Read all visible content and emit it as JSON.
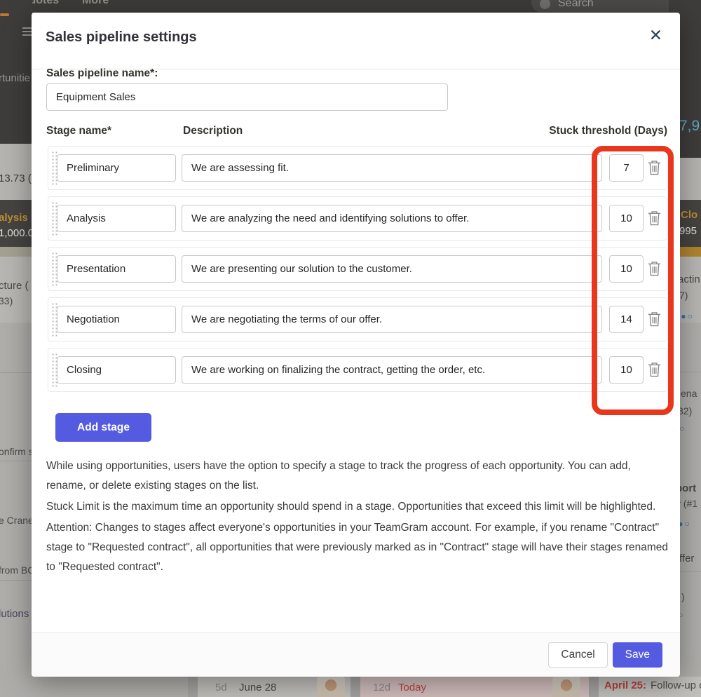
{
  "colors": {
    "accent_indigo": "#555be0",
    "annotation_red": "#e8371c",
    "header_dark": "#3d3c3a",
    "column_header_dark": "#454441",
    "orange_column_text": "#bf8f33",
    "blue_total_text": "#64a8cc",
    "pagination_dot_blue": "#3c6da5",
    "date_red": "#b5413a"
  },
  "background": {
    "nav": {
      "quotes": "Quotes",
      "more": "More",
      "search_placeholder": "Search"
    },
    "left_fragments": [
      "rtunitie",
      "13.73 (",
      "alysis",
      "1,000.0",
      "cture (",
      "33)",
      "onfirm s",
      "e Crane",
      "from BC",
      "lutions"
    ],
    "right_fragments": [
      "7,9",
      "Clo",
      "995",
      "actin",
      "7)",
      "●●○",
      "ena",
      "82)",
      "●○",
      "port",
      "y (#1",
      "●●○",
      "ffer",
      ")",
      "●○"
    ],
    "bottom_cards": {
      "card1_age": "5d",
      "card1_date": "June 28",
      "card2_age": "12d",
      "card2_date": "Today",
      "card3_date": "April 25:",
      "card3_text": " Follow-up ca"
    }
  },
  "modal": {
    "title": "Sales pipeline settings",
    "close_glyph": "✕",
    "pipeline_name": {
      "label": "Sales pipeline name*:",
      "value": "Equipment Sales"
    },
    "columns": {
      "stage": "Stage name*",
      "description": "Description",
      "threshold": "Stuck threshold (Days)"
    },
    "stages": [
      {
        "name": "Preliminary",
        "description": "We are assessing fit.",
        "threshold": "7"
      },
      {
        "name": "Analysis",
        "description": "We are analyzing the need and identifying solutions to offer.",
        "threshold": "10"
      },
      {
        "name": "Presentation",
        "description": "We are presenting our solution to the customer.",
        "threshold": "10"
      },
      {
        "name": "Negotiation",
        "description": "We are negotiating the terms of our offer.",
        "threshold": "14"
      },
      {
        "name": "Closing",
        "description": "We are working on finalizing the contract, getting the order, etc.",
        "threshold": "10"
      }
    ],
    "add_stage_label": "Add stage",
    "paragraphs": [
      "While using opportunities, users have the option to specify a stage to track the progress of each opportunity. You can add, rename, or delete existing stages on the list.",
      "Stuck Limit is the maximum time an opportunity should spend in a stage. Opportunities that exceed this limit will be highlighted.",
      "Attention: Changes to stages affect everyone's opportunities in your TeamGram account. For example, if you rename \"Contract\" stage to \"Requested contract\", all opportunities that were previously marked as in \"Contract\" stage will have their stages renamed to \"Requested contract\"."
    ],
    "cancel_label": "Cancel",
    "save_label": "Save"
  }
}
